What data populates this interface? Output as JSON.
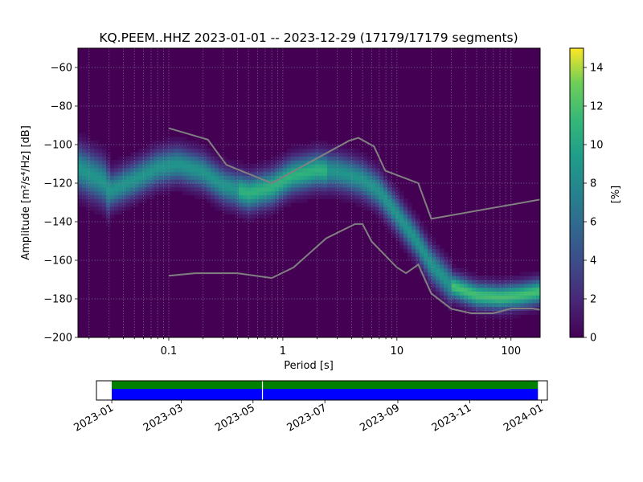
{
  "chart_data": [
    {
      "type": "heatmap",
      "title": "KQ.PEEM..HHZ   2023-01-01 -- 2023-12-29  (17179/17179 segments)",
      "xlabel": "Period [s]",
      "ylabel": "Amplitude [m²/s⁴/Hz] [dB]",
      "x_scale": "log",
      "xlim": [
        0.016,
        180
      ],
      "ylim": [
        -200,
        -50
      ],
      "x_ticks": [
        0.1,
        1,
        10,
        100
      ],
      "x_tick_labels": [
        "0.1",
        "1",
        "10",
        "100"
      ],
      "y_ticks": [
        -200,
        -180,
        -160,
        -140,
        -120,
        -100,
        -80,
        -60
      ],
      "y_tick_labels": [
        "−200",
        "−180",
        "−160",
        "−140",
        "−120",
        "−100",
        "−80",
        "−60"
      ],
      "grid": "dotted vertical (log minor decades) and horizontal",
      "colormap": "viridis",
      "colorbar": {
        "label": "[%]",
        "range": [
          0,
          15
        ],
        "ticks": [
          0,
          2,
          4,
          6,
          8,
          10,
          12,
          14
        ],
        "tick_labels": [
          "0",
          "2",
          "4",
          "6",
          "8",
          "10",
          "12",
          "14"
        ]
      },
      "ppsd_mode": {
        "period": [
          0.016,
          0.025,
          0.028,
          0.03,
          0.05,
          0.08,
          0.12,
          0.2,
          0.3,
          0.5,
          0.8,
          1.2,
          2,
          3,
          4,
          5,
          7,
          10,
          15,
          20,
          30,
          50,
          80,
          120,
          180
        ],
        "amplitude_db": [
          -112,
          -118,
          -120,
          -124,
          -118,
          -112,
          -110,
          -114,
          -121,
          -125,
          -122,
          -116,
          -113,
          -114,
          -116,
          -118,
          -124,
          -136,
          -150,
          -162,
          -173,
          -178,
          -179,
          -178,
          -176
        ]
      },
      "reference_curves": [
        {
          "id": "upper",
          "period": [
            0.1,
            0.22,
            0.32,
            0.8,
            3.8,
            4.6,
            6.3,
            7.9,
            15.4,
            20,
            180
          ],
          "amplitude_db": [
            -91.5,
            -97.4,
            -110.5,
            -120,
            -98.0,
            -96.5,
            -101,
            -113.5,
            -120,
            -138.5,
            -128.5
          ]
        },
        {
          "id": "lower",
          "period": [
            0.1,
            0.17,
            0.4,
            0.8,
            1.24,
            2.4,
            4.3,
            5.0,
            6.0,
            10,
            12,
            15.4,
            20,
            30,
            45,
            70,
            101,
            154,
            180
          ],
          "amplitude_db": [
            -168,
            -166.7,
            -166.7,
            -169.2,
            -163.7,
            -148.6,
            -141.2,
            -141.2,
            -150.2,
            -163.7,
            -166.7,
            -162.2,
            -177.2,
            -185.2,
            -187.5,
            -187.5,
            -185.0,
            -185.0,
            -185.7
          ]
        }
      ]
    },
    {
      "type": "timeline",
      "x_tick_labels": [
        "2023-01",
        "2023-03",
        "2023-05",
        "2023-07",
        "2023-09",
        "2023-11",
        "2024-01"
      ],
      "xlim": [
        "2022-12-19",
        "2024-01-06"
      ],
      "coverage_start": "2023-01-01",
      "coverage_end": "2023-12-29",
      "gap": "2023-05-09",
      "colors": {
        "data": "#0000ff",
        "processed": "#008000",
        "gap": "#ffffff"
      }
    }
  ]
}
